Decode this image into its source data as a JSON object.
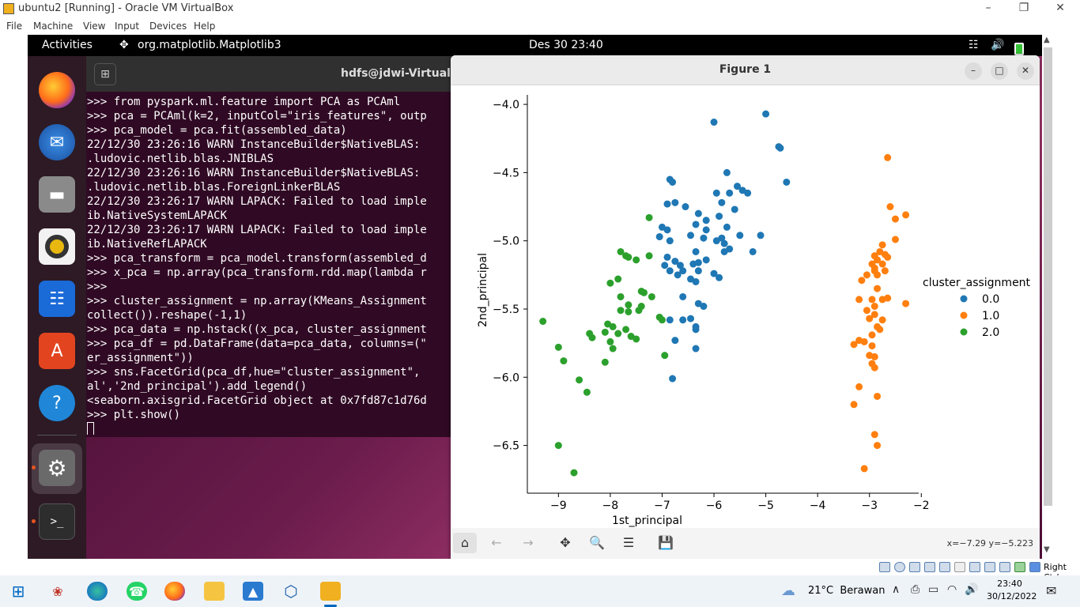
{
  "host": {
    "title": "ubuntu2 [Running] - Oracle VM VirtualBox",
    "menu": [
      "File",
      "Machine",
      "View",
      "Input",
      "Devices",
      "Help"
    ],
    "host_key": "Right Ctrl"
  },
  "topbar": {
    "activities": "Activities",
    "app_name": "org.matplotlib.Matplotlib3",
    "clock": "Des 30  23:40"
  },
  "dock": {
    "apps": [
      "firefox-icon",
      "thunderbird-icon",
      "files-icon",
      "rhythmbox-icon",
      "writer-icon",
      "software-icon",
      "help-icon",
      "settings-icon",
      "terminal-icon"
    ]
  },
  "terminal": {
    "title": "hdfs@jdwi-VirtualBox",
    "lines": [
      ">>> from pyspark.ml.feature import PCA as PCAml",
      ">>> pca = PCAml(k=2, inputCol=\"iris_features\", outp",
      ">>> pca_model = pca.fit(assembled_data)",
      "22/12/30 23:26:16 WARN InstanceBuilder$NativeBLAS:",
      ".ludovic.netlib.blas.JNIBLAS",
      "22/12/30 23:26:16 WARN InstanceBuilder$NativeBLAS:",
      ".ludovic.netlib.blas.ForeignLinkerBLAS",
      "22/12/30 23:26:17 WARN LAPACK: Failed to load imple",
      "ib.NativeSystemLAPACK",
      "22/12/30 23:26:17 WARN LAPACK: Failed to load imple",
      "ib.NativeRefLAPACK",
      ">>> pca_transform = pca_model.transform(assembled_d",
      ">>> x_pca = np.array(pca_transform.rdd.map(lambda r",
      ">>>",
      ">>> cluster_assignment = np.array(KMeans_Assignment",
      "collect()).reshape(-1,1)",
      ">>> pca_data = np.hstack((x_pca, cluster_assignment",
      ">>> pca_df = pd.DataFrame(data=pca_data, columns=(\"",
      "er_assignment\"))",
      ">>> sns.FacetGrid(pca_df,hue=\"cluster_assignment\",",
      "al','2nd_principal').add_legend()",
      "<seaborn.axisgrid.FacetGrid object at 0x7fd87c1d76d",
      ">>> plt.show()"
    ]
  },
  "figure": {
    "title": "Figure 1",
    "coords": "x=−7.29 y=−5.223",
    "toolbar": [
      "home-icon",
      "back-icon",
      "forward-icon",
      "pan-icon",
      "zoom-icon",
      "configure-icon",
      "save-icon"
    ]
  },
  "chart_data": {
    "type": "scatter",
    "title": "",
    "xlabel": "1st_principal",
    "ylabel": "2nd_principal",
    "xlim": [
      -9.6,
      -2.05
    ],
    "ylim": [
      -6.85,
      -3.93
    ],
    "xticks": [
      -9,
      -8,
      -7,
      -6,
      -5,
      -4,
      -3,
      -2
    ],
    "yticks": [
      -4.0,
      -4.5,
      -5.0,
      -5.5,
      -6.0,
      -6.5
    ],
    "xtick_labels": [
      "−9",
      "−8",
      "−7",
      "−6",
      "−5",
      "−4",
      "−3",
      "−2"
    ],
    "ytick_labels": [
      "−4.0",
      "−4.5",
      "−5.0",
      "−5.5",
      "−6.0",
      "−6.5"
    ],
    "legend": {
      "title": "cluster_assignment",
      "placement": "right"
    },
    "series": [
      {
        "name": "0.0",
        "color": "#1f77b4",
        "points": [
          [
            -6.0,
            -4.13
          ],
          [
            -5.0,
            -4.07
          ],
          [
            -4.75,
            -4.31
          ],
          [
            -4.72,
            -4.32
          ],
          [
            -4.6,
            -4.57
          ],
          [
            -5.75,
            -4.5
          ],
          [
            -5.55,
            -4.6
          ],
          [
            -5.45,
            -4.63
          ],
          [
            -5.35,
            -4.65
          ],
          [
            -5.95,
            -4.65
          ],
          [
            -5.7,
            -4.65
          ],
          [
            -6.85,
            -4.55
          ],
          [
            -6.8,
            -4.57
          ],
          [
            -6.75,
            -4.72
          ],
          [
            -6.9,
            -4.73
          ],
          [
            -6.55,
            -4.75
          ],
          [
            -6.3,
            -4.8
          ],
          [
            -5.85,
            -4.72
          ],
          [
            -5.6,
            -4.77
          ],
          [
            -5.9,
            -4.82
          ],
          [
            -6.15,
            -4.85
          ],
          [
            -6.35,
            -4.88
          ],
          [
            -7.0,
            -4.9
          ],
          [
            -6.9,
            -4.92
          ],
          [
            -6.15,
            -4.92
          ],
          [
            -5.75,
            -4.9
          ],
          [
            -5.5,
            -4.96
          ],
          [
            -7.05,
            -4.97
          ],
          [
            -6.85,
            -5.0
          ],
          [
            -6.45,
            -4.96
          ],
          [
            -6.2,
            -4.98
          ],
          [
            -5.85,
            -4.98
          ],
          [
            -5.95,
            -5.0
          ],
          [
            -5.1,
            -4.96
          ],
          [
            -5.8,
            -5.02
          ],
          [
            -5.7,
            -5.06
          ],
          [
            -5.8,
            -5.08
          ],
          [
            -5.25,
            -5.08
          ],
          [
            -6.35,
            -5.08
          ],
          [
            -6.15,
            -5.14
          ],
          [
            -6.9,
            -5.12
          ],
          [
            -6.75,
            -5.15
          ],
          [
            -6.65,
            -5.18
          ],
          [
            -6.4,
            -5.17
          ],
          [
            -6.3,
            -5.16
          ],
          [
            -6.95,
            -5.18
          ],
          [
            -6.85,
            -5.22
          ],
          [
            -6.6,
            -5.22
          ],
          [
            -6.3,
            -5.22
          ],
          [
            -6.7,
            -5.25
          ],
          [
            -6.45,
            -5.28
          ],
          [
            -6.0,
            -5.24
          ],
          [
            -5.9,
            -5.27
          ],
          [
            -6.35,
            -5.3
          ],
          [
            -6.6,
            -5.41
          ],
          [
            -6.3,
            -5.46
          ],
          [
            -6.2,
            -5.48
          ],
          [
            -6.45,
            -5.57
          ],
          [
            -6.85,
            -5.58
          ],
          [
            -6.6,
            -5.58
          ],
          [
            -6.35,
            -5.63
          ],
          [
            -6.35,
            -5.65
          ],
          [
            -6.75,
            -5.73
          ],
          [
            -6.35,
            -5.79
          ],
          [
            -6.8,
            -6.01
          ]
        ]
      },
      {
        "name": "1.0",
        "color": "#ff7f0e",
        "points": [
          [
            -2.65,
            -4.39
          ],
          [
            -2.6,
            -4.75
          ],
          [
            -2.3,
            -4.81
          ],
          [
            -2.5,
            -4.84
          ],
          [
            -2.5,
            -4.99
          ],
          [
            -2.75,
            -5.03
          ],
          [
            -2.8,
            -5.08
          ],
          [
            -2.7,
            -5.1
          ],
          [
            -2.9,
            -5.11
          ],
          [
            -2.65,
            -5.12
          ],
          [
            -2.85,
            -5.14
          ],
          [
            -2.95,
            -5.17
          ],
          [
            -2.75,
            -5.17
          ],
          [
            -2.9,
            -5.2
          ],
          [
            -2.7,
            -5.22
          ],
          [
            -2.9,
            -5.22
          ],
          [
            -3.05,
            -5.25
          ],
          [
            -2.85,
            -5.25
          ],
          [
            -3.15,
            -5.29
          ],
          [
            -2.85,
            -5.35
          ],
          [
            -2.65,
            -5.42
          ],
          [
            -3.2,
            -5.43
          ],
          [
            -2.95,
            -5.43
          ],
          [
            -2.75,
            -5.43
          ],
          [
            -2.3,
            -5.46
          ],
          [
            -2.9,
            -5.48
          ],
          [
            -3.05,
            -5.51
          ],
          [
            -2.9,
            -5.54
          ],
          [
            -3.0,
            -5.57
          ],
          [
            -2.75,
            -5.58
          ],
          [
            -2.85,
            -5.63
          ],
          [
            -2.8,
            -5.65
          ],
          [
            -2.95,
            -5.69
          ],
          [
            -3.2,
            -5.73
          ],
          [
            -3.3,
            -5.76
          ],
          [
            -3.1,
            -5.74
          ],
          [
            -2.95,
            -5.77
          ],
          [
            -3.0,
            -5.84
          ],
          [
            -2.9,
            -5.85
          ],
          [
            -2.95,
            -5.9
          ],
          [
            -2.9,
            -5.93
          ],
          [
            -3.2,
            -6.07
          ],
          [
            -2.85,
            -6.14
          ],
          [
            -3.3,
            -6.2
          ],
          [
            -2.9,
            -6.42
          ],
          [
            -2.85,
            -6.5
          ],
          [
            -3.1,
            -6.67
          ]
        ]
      },
      {
        "name": "2.0",
        "color": "#2ca02c",
        "points": [
          [
            -7.25,
            -4.83
          ],
          [
            -7.8,
            -5.08
          ],
          [
            -7.7,
            -5.11
          ],
          [
            -7.65,
            -5.12
          ],
          [
            -7.5,
            -5.14
          ],
          [
            -7.25,
            -5.11
          ],
          [
            -7.85,
            -5.28
          ],
          [
            -8.0,
            -5.31
          ],
          [
            -7.4,
            -5.37
          ],
          [
            -7.35,
            -5.38
          ],
          [
            -7.2,
            -5.41
          ],
          [
            -7.8,
            -5.41
          ],
          [
            -7.65,
            -5.47
          ],
          [
            -7.4,
            -5.48
          ],
          [
            -7.8,
            -5.51
          ],
          [
            -7.65,
            -5.52
          ],
          [
            -7.45,
            -5.51
          ],
          [
            -7.05,
            -5.56
          ],
          [
            -7.0,
            -5.58
          ],
          [
            -9.3,
            -5.59
          ],
          [
            -8.05,
            -5.61
          ],
          [
            -7.95,
            -5.63
          ],
          [
            -7.7,
            -5.65
          ],
          [
            -8.1,
            -5.67
          ],
          [
            -7.85,
            -5.68
          ],
          [
            -8.4,
            -5.68
          ],
          [
            -8.35,
            -5.71
          ],
          [
            -7.6,
            -5.7
          ],
          [
            -7.5,
            -5.72
          ],
          [
            -8.0,
            -5.74
          ],
          [
            -9.0,
            -5.78
          ],
          [
            -7.95,
            -5.79
          ],
          [
            -6.95,
            -5.84
          ],
          [
            -8.1,
            -5.89
          ],
          [
            -8.9,
            -5.88
          ],
          [
            -8.6,
            -6.02
          ],
          [
            -8.45,
            -6.11
          ],
          [
            -9.0,
            -6.5
          ],
          [
            -8.7,
            -6.7
          ]
        ]
      }
    ]
  },
  "status_bar": {
    "weather": "21°C  Berawan",
    "time": "23:40",
    "date": "30/12/2022"
  }
}
